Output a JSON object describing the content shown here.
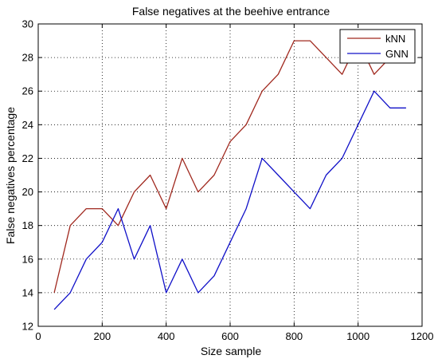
{
  "chart_data": {
    "type": "line",
    "title": "False negatives at the beehive entrance",
    "xlabel": "Size sample",
    "ylabel": "False negatives percentage",
    "xlim": [
      0,
      1200
    ],
    "ylim": [
      12,
      30
    ],
    "xticks": [
      0,
      200,
      400,
      600,
      800,
      1000,
      1200
    ],
    "yticks": [
      12,
      14,
      16,
      18,
      20,
      22,
      24,
      26,
      28,
      30
    ],
    "grid": true,
    "legend_position": "top-right",
    "series": [
      {
        "name": "kNN",
        "color": "#a0281e",
        "x": [
          50,
          100,
          150,
          200,
          250,
          300,
          350,
          400,
          450,
          500,
          550,
          600,
          650,
          700,
          750,
          800,
          850,
          900,
          950,
          1000,
          1050,
          1100
        ],
        "y": [
          14,
          18,
          19,
          19,
          18,
          20,
          21,
          19,
          22,
          20,
          21,
          23,
          24,
          26,
          27,
          29,
          29,
          28,
          27,
          29,
          27,
          28
        ]
      },
      {
        "name": "GNN",
        "color": "#1010c8",
        "x": [
          50,
          100,
          150,
          200,
          250,
          300,
          350,
          400,
          450,
          500,
          550,
          600,
          650,
          700,
          750,
          800,
          850,
          900,
          950,
          1000,
          1050,
          1100,
          1150
        ],
        "y": [
          13,
          14,
          16,
          17,
          19,
          16,
          18,
          14,
          16,
          14,
          15,
          17,
          19,
          22,
          21,
          20,
          19,
          21,
          22,
          24,
          26,
          25,
          25
        ]
      }
    ]
  }
}
